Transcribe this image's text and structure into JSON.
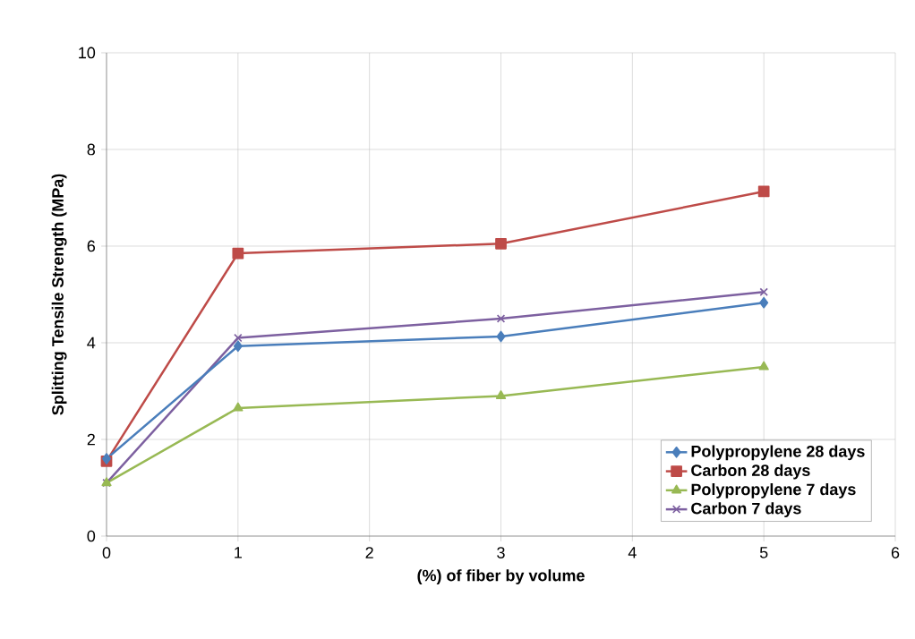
{
  "chart_data": {
    "type": "line",
    "xlabel": "(%) of fiber by volume",
    "ylabel": "Splitting Tensile Strength  (MPa)",
    "x": [
      0,
      1,
      3,
      5
    ],
    "xlim": [
      0,
      6
    ],
    "xticks": [
      0,
      1,
      2,
      3,
      4,
      5,
      6
    ],
    "ylim": [
      0,
      10
    ],
    "yticks": [
      0,
      2,
      4,
      6,
      8,
      10
    ],
    "grid": true,
    "legend": "bottom right",
    "series": [
      {
        "name": "Polypropylene 28 days",
        "color": "#4a7ebb",
        "marker": "diamond",
        "values": [
          1.6,
          3.93,
          4.13,
          4.83
        ]
      },
      {
        "name": "Carbon 28 days",
        "color": "#be4b48",
        "marker": "square",
        "values": [
          1.55,
          5.85,
          6.05,
          7.13
        ]
      },
      {
        "name": "Polypropylene 7 days",
        "color": "#98b954",
        "marker": "triangle",
        "values": [
          1.1,
          2.65,
          2.9,
          3.5
        ]
      },
      {
        "name": "Carbon 7 days",
        "color": "#7d60a0",
        "marker": "cross",
        "values": [
          1.1,
          4.1,
          4.5,
          5.05
        ]
      }
    ]
  }
}
